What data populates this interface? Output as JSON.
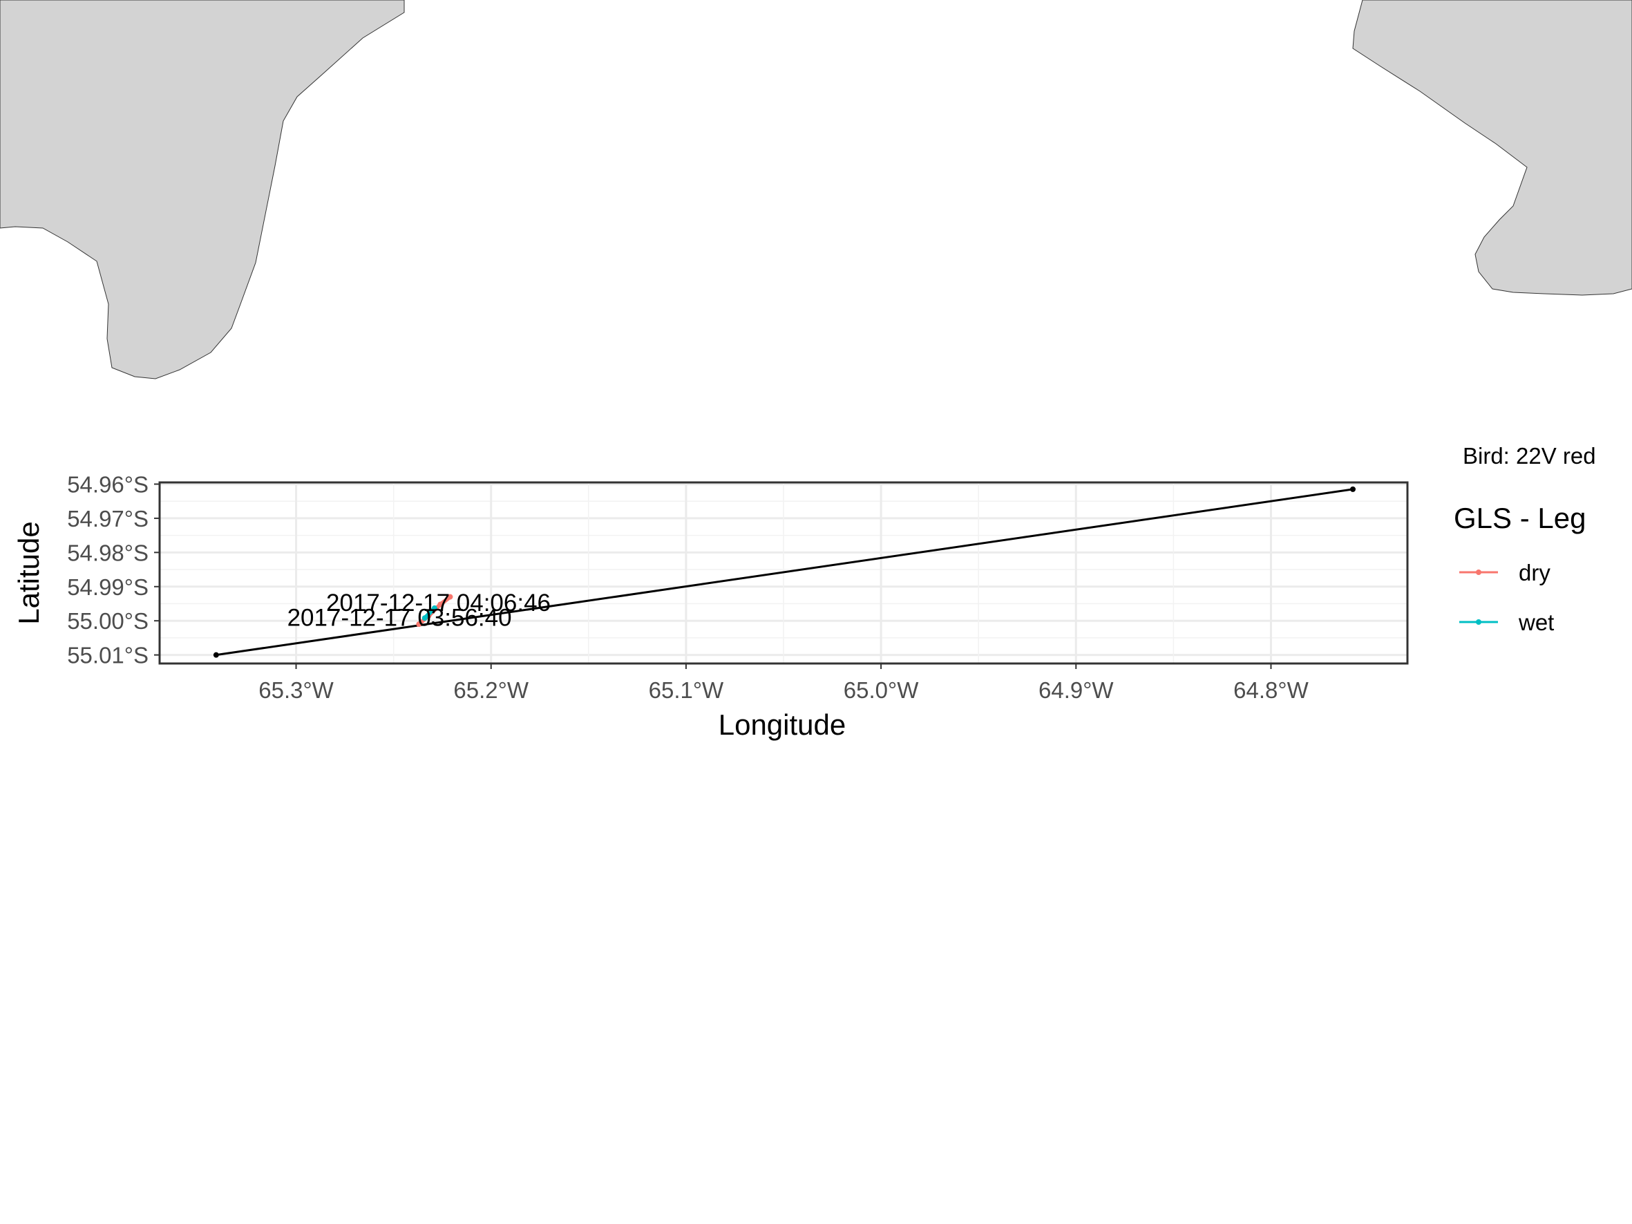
{
  "chart_data": {
    "type": "line",
    "xlabel": "Longitude",
    "ylabel": "Latitude",
    "xlim": [
      -65.37,
      -64.73
    ],
    "ylim": [
      -55.0125,
      -54.9595
    ],
    "x_ticks": [
      {
        "value": -65.3,
        "label": "65.3°W"
      },
      {
        "value": -65.2,
        "label": "65.2°W"
      },
      {
        "value": -65.1,
        "label": "65.1°W"
      },
      {
        "value": -65.0,
        "label": "65.0°W"
      },
      {
        "value": -64.9,
        "label": "64.9°W"
      },
      {
        "value": -64.8,
        "label": "64.8°W"
      }
    ],
    "y_ticks": [
      {
        "value": -54.96,
        "label": "54.96°S"
      },
      {
        "value": -54.97,
        "label": "54.97°S"
      },
      {
        "value": -54.98,
        "label": "54.98°S"
      },
      {
        "value": -54.99,
        "label": "54.99°S"
      },
      {
        "value": -55.0,
        "label": "55.00°S"
      },
      {
        "value": -55.01,
        "label": "55.01°S"
      }
    ],
    "grid": true,
    "track": {
      "color": "#000000",
      "points": [
        {
          "lon": -65.341,
          "lat": -55.01
        },
        {
          "lon": -64.758,
          "lat": -54.9615
        }
      ]
    },
    "series": [
      {
        "name": "dry",
        "color": "#F8766D",
        "points": [
          {
            "lon": -65.237,
            "lat": -55.001
          },
          {
            "lon": -65.232,
            "lat": -54.9985
          },
          {
            "lon": -65.226,
            "lat": -54.9952
          },
          {
            "lon": -65.221,
            "lat": -54.993
          }
        ]
      },
      {
        "name": "wet",
        "color": "#00BFC4",
        "points": [
          {
            "lon": -65.234,
            "lat": -54.9992
          },
          {
            "lon": -65.229,
            "lat": -54.9963
          }
        ]
      }
    ],
    "annotations": [
      {
        "text": "2017-12-17 04:06:46",
        "lon": -65.227,
        "lat": -54.9947
      },
      {
        "text": "2017-12-17 03:56:40",
        "lon": -65.247,
        "lat": -54.999
      }
    ],
    "legend": {
      "title": "GLS - Leg",
      "position": "right",
      "entries": [
        {
          "label": "dry",
          "color": "#F8766D"
        },
        {
          "label": "wet",
          "color": "#00BFC4"
        }
      ]
    }
  },
  "info": {
    "bird": "Bird: 22V red"
  },
  "map": {
    "land_color": "#d3d3d3",
    "land_outline": "#333333"
  }
}
